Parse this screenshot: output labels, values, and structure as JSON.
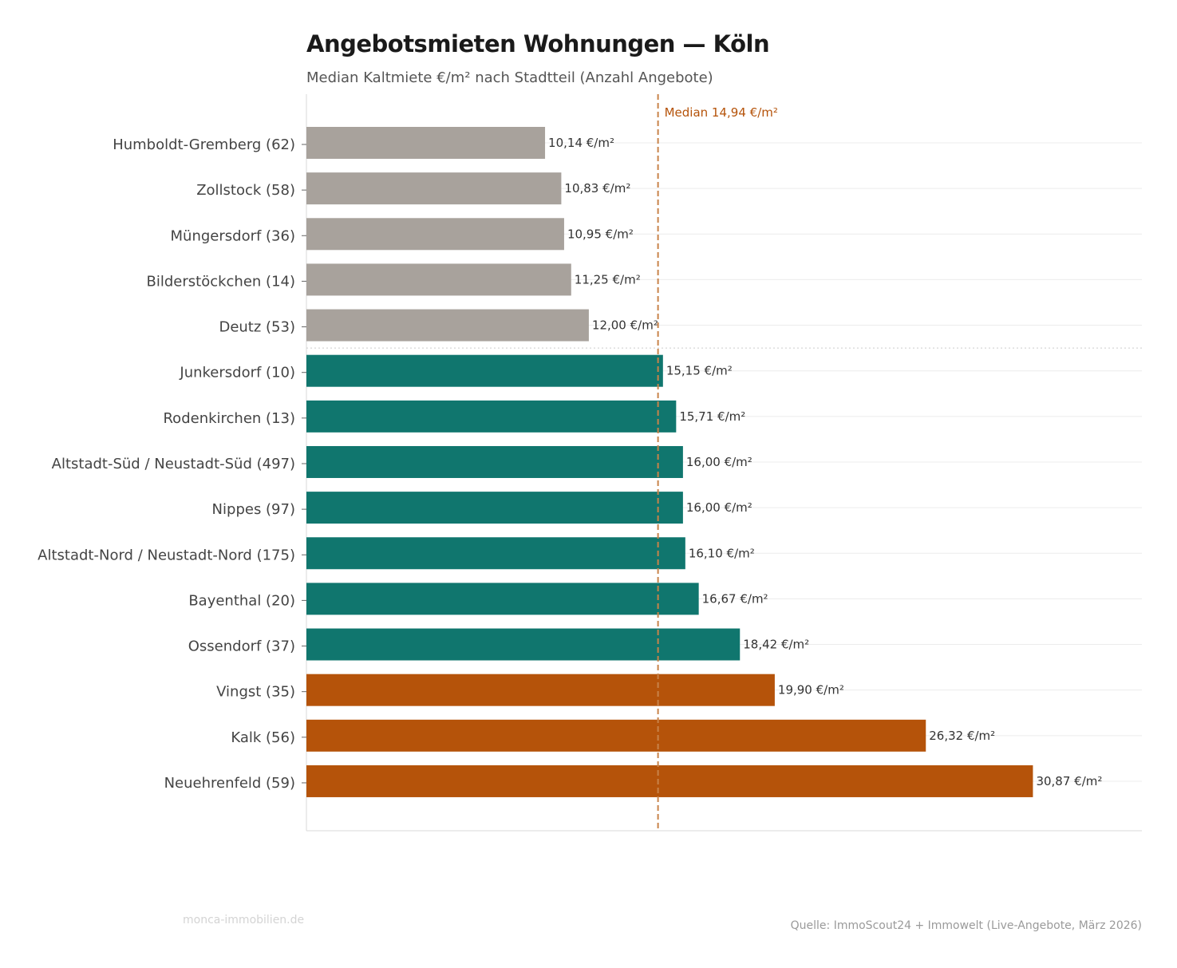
{
  "chart_data": {
    "type": "bar",
    "orientation": "horizontal",
    "title": "Angebotsmieten Wohnungen — Köln",
    "subtitle": "Median Kaltmiete €/m² nach Stadtteil (Anzahl Angebote)",
    "categories": [
      "Humboldt-Gremberg  (62)",
      "Zollstock  (58)",
      "Müngersdorf  (36)",
      "Bilderstöckchen  (14)",
      "Deutz  (53)",
      "Junkersdorf  (10)",
      "Rodenkirchen  (13)",
      "Altstadt-Süd / Neustadt-Süd  (497)",
      "Nippes  (97)",
      "Altstadt-Nord / Neustadt-Nord  (175)",
      "Bayenthal  (20)",
      "Ossendorf  (37)",
      "Vingst  (35)",
      "Kalk  (56)",
      "Neuehrenfeld  (59)"
    ],
    "values": [
      10.14,
      10.83,
      10.95,
      11.25,
      12.0,
      15.15,
      15.71,
      16.0,
      16.0,
      16.1,
      16.67,
      18.42,
      19.9,
      26.32,
      30.87
    ],
    "value_labels": [
      "10,14 €/m²",
      "10,83 €/m²",
      "10,95 €/m²",
      "11,25 €/m²",
      "12,00 €/m²",
      "15,15 €/m²",
      "15,71 €/m²",
      "16,00 €/m²",
      "16,00 €/m²",
      "16,10 €/m²",
      "16,67 €/m²",
      "18,42 €/m²",
      "19,90 €/m²",
      "26,32 €/m²",
      "30,87 €/m²"
    ],
    "groups": [
      "low",
      "low",
      "low",
      "low",
      "low",
      "mid",
      "mid",
      "mid",
      "mid",
      "mid",
      "mid",
      "mid",
      "high",
      "high",
      "high"
    ],
    "group_colors": {
      "low": "#a8a29c",
      "mid": "#10766e",
      "high": "#b5530a"
    },
    "median": {
      "value": 14.94,
      "label": "Median 14,94 €/m²",
      "color": "#c8834a",
      "label_color": "#b5530a"
    },
    "xlim": [
      0,
      35.5
    ],
    "xaxis_visible": false,
    "grid": "horizontal"
  },
  "footer": {
    "watermark": "monca-immobilien.de",
    "source": "Quelle: ImmoScout24 + Immowelt (Live-Angebote, März 2026)"
  }
}
